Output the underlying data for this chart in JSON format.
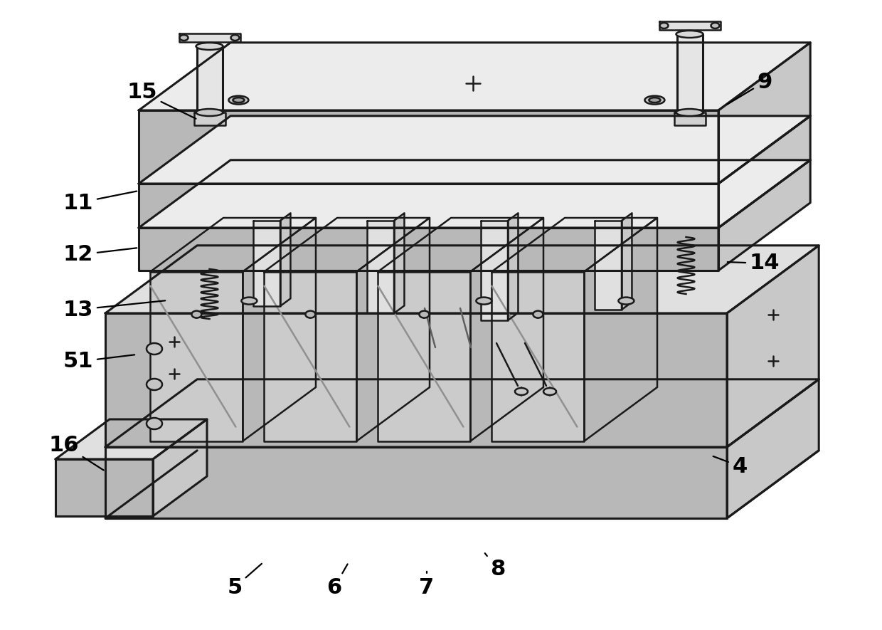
{
  "bg_color": "#ffffff",
  "lc": "#1a1a1a",
  "lw": 1.8,
  "lw_thick": 2.2,
  "gray_top": "#e0e0e0",
  "gray_front": "#b8b8b8",
  "gray_right": "#c8c8c8",
  "gray_light": "#ececec",
  "gray_dark": "#a0a0a0",
  "white": "#ffffff",
  "annotations": [
    [
      "4",
      1040,
      655,
      1000,
      640
    ],
    [
      "5",
      330,
      825,
      370,
      790
    ],
    [
      "6",
      470,
      825,
      490,
      790
    ],
    [
      "7",
      600,
      825,
      600,
      800
    ],
    [
      "8",
      700,
      800,
      680,
      775
    ],
    [
      "9",
      1075,
      115,
      1020,
      148
    ],
    [
      "11",
      110,
      285,
      195,
      268
    ],
    [
      "12",
      110,
      358,
      195,
      348
    ],
    [
      "13",
      110,
      435,
      235,
      422
    ],
    [
      "14",
      1075,
      370,
      1020,
      368
    ],
    [
      "15",
      200,
      130,
      278,
      168
    ],
    [
      "16",
      90,
      625,
      148,
      662
    ],
    [
      "51",
      110,
      508,
      192,
      498
    ]
  ]
}
